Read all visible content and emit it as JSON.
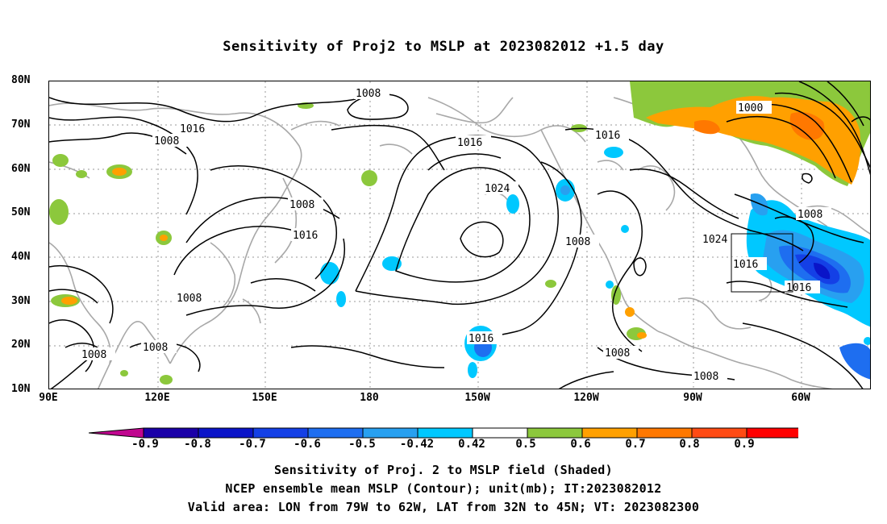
{
  "title": "Sensitivity of Proj2 to MSLP at 2023082012 +1.5 day",
  "lat_labels": [
    "80N",
    "70N",
    "60N",
    "50N",
    "40N",
    "30N",
    "20N",
    "10N"
  ],
  "lon_labels": [
    "90E",
    "120E",
    "150E",
    "180",
    "150W",
    "120W",
    "90W",
    "60W"
  ],
  "contour_labels": [
    "1008",
    "1016",
    "1008",
    "1016",
    "1024",
    "1016",
    "1008",
    "1016",
    "1008",
    "1024",
    "1016",
    "1016",
    "1008",
    "1008",
    "1016",
    "1008",
    "1008",
    "1008",
    "1000",
    "1008"
  ],
  "colorbar": {
    "labels": [
      "-0.9",
      "-0.8",
      "-0.7",
      "-0.6",
      "-0.5",
      "-0.42",
      "0.42",
      "0.5",
      "0.6",
      "0.7",
      "0.8",
      "0.9"
    ],
    "colors": [
      "#c0068f",
      "#1a00a8",
      "#0a14c8",
      "#1440e6",
      "#1e6ef0",
      "#28a0f0",
      "#00c8ff",
      "#ffffff",
      "#8cc83c",
      "#ffa000",
      "#ff7800",
      "#ff4b14",
      "#ff0000",
      "#f07ab4"
    ]
  },
  "valid_box": {
    "lon_min": -79,
    "lon_max": -62,
    "lat_min": 32,
    "lat_max": 45
  },
  "captions": [
    "Sensitivity of Proj. 2 to MSLP field (Shaded)",
    "NCEP ensemble mean MSLP (Contour); unit(mb); IT:2023082012",
    "Valid area: LON from 79W to 62W, LAT from 32N to 45N; VT: 2023082300"
  ]
}
